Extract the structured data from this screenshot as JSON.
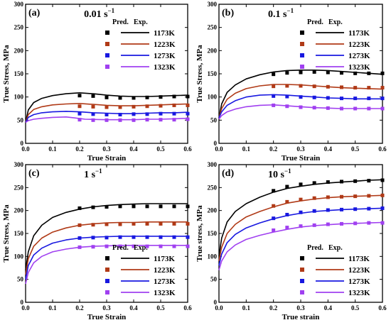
{
  "chart_data": [
    {
      "type": "line",
      "panel_label": "(a)",
      "rate_label": "0.01 s",
      "rate_exp": "−1",
      "xlabel": "True Strain",
      "ylabel": "True Stress, MPa",
      "xlim": [
        0,
        0.6
      ],
      "ylim": [
        0,
        300
      ],
      "x_ticks": [
        "0.0",
        "0.1",
        "0.2",
        "0.3",
        "0.4",
        "0.5",
        "0.6"
      ],
      "y_ticks": [
        "0",
        "50",
        "100",
        "150",
        "200",
        "250",
        "300"
      ],
      "legend_header": [
        "Pred.",
        "Exp."
      ],
      "legend_placement": "top-right",
      "series": [
        {
          "name": "1173K",
          "color": "#000000",
          "pred_x": [
            0,
            0.01,
            0.03,
            0.06,
            0.1,
            0.15,
            0.2,
            0.25,
            0.3,
            0.35,
            0.4,
            0.45,
            0.5,
            0.55,
            0.6
          ],
          "pred_y": [
            45,
            72,
            88,
            97,
            103,
            107,
            109,
            107,
            104,
            102,
            101,
            101,
            102,
            103,
            104
          ],
          "exp_x": [
            0.2,
            0.25,
            0.3,
            0.35,
            0.4,
            0.45,
            0.5,
            0.55,
            0.6
          ],
          "exp_y": [
            103,
            102,
            99,
            98,
            98,
            99,
            100,
            101,
            101
          ]
        },
        {
          "name": "1223K",
          "color": "#b03a17",
          "pred_x": [
            0,
            0.01,
            0.03,
            0.06,
            0.1,
            0.15,
            0.2,
            0.25,
            0.3,
            0.35,
            0.4,
            0.45,
            0.5,
            0.55,
            0.6
          ],
          "pred_y": [
            45,
            62,
            73,
            79,
            83,
            85,
            86,
            84,
            82,
            81,
            81,
            82,
            83,
            84,
            85
          ],
          "exp_x": [
            0.2,
            0.25,
            0.3,
            0.35,
            0.4,
            0.45,
            0.5,
            0.55,
            0.6
          ],
          "exp_y": [
            80,
            79,
            78,
            78,
            79,
            80,
            81,
            82,
            82
          ]
        },
        {
          "name": "1273K",
          "color": "#1818e0",
          "pred_x": [
            0,
            0.01,
            0.03,
            0.06,
            0.1,
            0.15,
            0.2,
            0.25,
            0.3,
            0.35,
            0.4,
            0.45,
            0.5,
            0.55,
            0.6
          ],
          "pred_y": [
            45,
            56,
            62,
            66,
            68,
            69,
            68,
            66,
            65,
            64,
            64,
            65,
            66,
            66,
            67
          ],
          "exp_x": [
            0.2,
            0.25,
            0.3,
            0.35,
            0.4,
            0.45,
            0.5,
            0.55,
            0.6
          ],
          "exp_y": [
            64,
            63,
            62,
            62,
            63,
            63,
            64,
            64,
            64
          ]
        },
        {
          "name": "1323K",
          "color": "#a040f0",
          "pred_x": [
            0,
            0.01,
            0.03,
            0.06,
            0.1,
            0.15,
            0.18,
            0.22,
            0.3,
            0.35,
            0.4,
            0.45,
            0.5,
            0.55,
            0.6
          ],
          "pred_y": [
            45,
            49,
            52,
            54,
            56,
            57,
            55,
            52,
            51,
            51,
            51,
            52,
            52,
            53,
            54
          ],
          "exp_x": [
            0.2,
            0.25,
            0.3,
            0.35,
            0.4,
            0.45,
            0.5,
            0.55,
            0.6
          ],
          "exp_y": [
            51,
            50,
            50,
            50,
            50,
            51,
            51,
            51,
            52
          ]
        }
      ]
    },
    {
      "type": "line",
      "panel_label": "(b)",
      "rate_label": "0.1 s",
      "rate_exp": "−1",
      "xlabel": "True Strain",
      "ylabel": "True Stress, MPa",
      "xlim": [
        0,
        0.6
      ],
      "ylim": [
        0,
        300
      ],
      "x_ticks": [
        "0.0",
        "0.1",
        "0.2",
        "0.3",
        "0.4",
        "0.5",
        "0.6"
      ],
      "y_ticks": [
        "0",
        "50",
        "100",
        "150",
        "200",
        "250",
        "300"
      ],
      "legend_header": [
        "Pred.",
        "Exp."
      ],
      "legend_placement": "top-right",
      "series": [
        {
          "name": "1173K",
          "color": "#000000",
          "pred_x": [
            0,
            0.01,
            0.03,
            0.06,
            0.1,
            0.15,
            0.2,
            0.25,
            0.3,
            0.35,
            0.4,
            0.45,
            0.5,
            0.55,
            0.6
          ],
          "pred_y": [
            55,
            85,
            110,
            126,
            139,
            148,
            154,
            157,
            158,
            158,
            157,
            155,
            153,
            151,
            149
          ],
          "exp_x": [
            0.2,
            0.25,
            0.3,
            0.35,
            0.4,
            0.45,
            0.5,
            0.55,
            0.6
          ],
          "exp_y": [
            149,
            152,
            153,
            154,
            153,
            152,
            151,
            151,
            151
          ]
        },
        {
          "name": "1223K",
          "color": "#b03a17",
          "pred_x": [
            0,
            0.01,
            0.03,
            0.06,
            0.1,
            0.15,
            0.2,
            0.25,
            0.3,
            0.35,
            0.4,
            0.45,
            0.5,
            0.55,
            0.6
          ],
          "pred_y": [
            55,
            75,
            95,
            108,
            118,
            124,
            127,
            127,
            126,
            124,
            122,
            120,
            119,
            118,
            117
          ],
          "exp_x": [
            0.2,
            0.25,
            0.3,
            0.35,
            0.4,
            0.45,
            0.5,
            0.55,
            0.6
          ],
          "exp_y": [
            123,
            124,
            124,
            123,
            122,
            121,
            120,
            120,
            120
          ]
        },
        {
          "name": "1273K",
          "color": "#1818e0",
          "pred_x": [
            0,
            0.01,
            0.03,
            0.06,
            0.1,
            0.15,
            0.2,
            0.25,
            0.3,
            0.35,
            0.4,
            0.45,
            0.5,
            0.55,
            0.6
          ],
          "pred_y": [
            55,
            68,
            82,
            92,
            100,
            104,
            105,
            104,
            102,
            100,
            98,
            97,
            96,
            96,
            96
          ],
          "exp_x": [
            0.2,
            0.25,
            0.3,
            0.35,
            0.4,
            0.45,
            0.5,
            0.55,
            0.6
          ],
          "exp_y": [
            102,
            101,
            100,
            99,
            98,
            97,
            97,
            97,
            97
          ]
        },
        {
          "name": "1323K",
          "color": "#a040f0",
          "pred_x": [
            0,
            0.01,
            0.03,
            0.06,
            0.1,
            0.15,
            0.2,
            0.25,
            0.3,
            0.35,
            0.4,
            0.45,
            0.5,
            0.55,
            0.6
          ],
          "pred_y": [
            52,
            60,
            68,
            74,
            79,
            82,
            83,
            81,
            79,
            77,
            76,
            75,
            75,
            75,
            75
          ],
          "exp_x": [
            0.2,
            0.25,
            0.3,
            0.35,
            0.4,
            0.45,
            0.5,
            0.55,
            0.6
          ],
          "exp_y": [
            82,
            80,
            78,
            77,
            76,
            75,
            75,
            75,
            75
          ]
        }
      ]
    },
    {
      "type": "line",
      "panel_label": "(c)",
      "rate_label": "1 s",
      "rate_exp": "−1",
      "xlabel": "True Strain",
      "ylabel": "True Stress, MPa",
      "xlim": [
        0,
        0.6
      ],
      "ylim": [
        0,
        300
      ],
      "x_ticks": [
        "0.0",
        "0.1",
        "0.2",
        "0.3",
        "0.4",
        "0.5",
        "0.6"
      ],
      "y_ticks": [
        "0",
        "50",
        "100",
        "150",
        "200",
        "250",
        "300"
      ],
      "legend_header": [
        "Pred.",
        "Exp."
      ],
      "legend_placement": "bottom-right",
      "series": [
        {
          "name": "1173K",
          "color": "#000000",
          "pred_x": [
            0,
            0.01,
            0.03,
            0.06,
            0.1,
            0.15,
            0.2,
            0.25,
            0.3,
            0.35,
            0.4,
            0.45,
            0.5,
            0.55,
            0.6
          ],
          "pred_y": [
            70,
            110,
            145,
            168,
            185,
            196,
            203,
            208,
            211,
            213,
            214,
            215,
            215,
            215,
            215
          ],
          "exp_x": [
            0.2,
            0.25,
            0.3,
            0.35,
            0.4,
            0.45,
            0.5,
            0.55,
            0.6
          ],
          "exp_y": [
            205,
            207,
            208,
            209,
            209,
            209,
            209,
            209,
            209
          ]
        },
        {
          "name": "1223K",
          "color": "#b03a17",
          "pred_x": [
            0,
            0.01,
            0.03,
            0.06,
            0.1,
            0.15,
            0.2,
            0.25,
            0.3,
            0.35,
            0.4,
            0.45,
            0.5,
            0.55,
            0.6
          ],
          "pred_y": [
            60,
            95,
            122,
            140,
            153,
            162,
            168,
            171,
            173,
            174,
            174,
            175,
            175,
            175,
            175
          ],
          "exp_x": [
            0.2,
            0.25,
            0.3,
            0.35,
            0.4,
            0.45,
            0.5,
            0.55,
            0.6
          ],
          "exp_y": [
            168,
            169,
            170,
            170,
            171,
            171,
            171,
            171,
            171
          ]
        },
        {
          "name": "1273K",
          "color": "#1818e0",
          "pred_x": [
            0,
            0.01,
            0.03,
            0.06,
            0.1,
            0.15,
            0.2,
            0.25,
            0.3,
            0.35,
            0.4,
            0.45,
            0.5,
            0.55,
            0.6
          ],
          "pred_y": [
            50,
            80,
            103,
            118,
            129,
            136,
            140,
            142,
            143,
            144,
            144,
            144,
            144,
            144,
            144
          ],
          "exp_x": [
            0.2,
            0.25,
            0.3,
            0.35,
            0.4,
            0.45,
            0.5,
            0.55,
            0.6
          ],
          "exp_y": [
            140,
            141,
            141,
            142,
            142,
            142,
            142,
            142,
            142
          ]
        },
        {
          "name": "1323K",
          "color": "#a040f0",
          "pred_x": [
            0,
            0.01,
            0.03,
            0.06,
            0.1,
            0.15,
            0.2,
            0.25,
            0.3,
            0.35,
            0.4,
            0.45,
            0.5,
            0.55,
            0.6
          ],
          "pred_y": [
            40,
            65,
            86,
            100,
            110,
            116,
            120,
            122,
            123,
            124,
            124,
            124,
            124,
            124,
            124
          ],
          "exp_x": [
            0.2,
            0.25,
            0.3,
            0.35,
            0.4,
            0.45,
            0.5,
            0.55,
            0.6
          ],
          "exp_y": [
            120,
            121,
            122,
            122,
            122,
            122,
            122,
            122,
            122
          ]
        }
      ]
    },
    {
      "type": "line",
      "panel_label": "(d)",
      "rate_label": "10 s",
      "rate_exp": "−1",
      "xlabel": "True strain",
      "ylabel": "True stress, MPa",
      "xlim": [
        0,
        0.6
      ],
      "ylim": [
        0,
        300
      ],
      "x_ticks": [
        "0.0",
        "0.1",
        "0.2",
        "0.3",
        "0.4",
        "0.5",
        "0.6"
      ],
      "y_ticks": [
        "0",
        "50",
        "100",
        "150",
        "200",
        "250",
        "300"
      ],
      "legend_header": [
        "Pred.",
        "Exp."
      ],
      "legend_placement": "bottom-right",
      "series": [
        {
          "name": "1173K",
          "color": "#000000",
          "pred_x": [
            0,
            0.01,
            0.03,
            0.06,
            0.1,
            0.15,
            0.2,
            0.25,
            0.3,
            0.35,
            0.4,
            0.45,
            0.5,
            0.55,
            0.6
          ],
          "pred_y": [
            100,
            140,
            175,
            198,
            215,
            229,
            240,
            248,
            253,
            257,
            260,
            262,
            264,
            266,
            267
          ],
          "exp_x": [
            0.2,
            0.25,
            0.3,
            0.35,
            0.4,
            0.45,
            0.5,
            0.55,
            0.6
          ],
          "exp_y": [
            243,
            252,
            257,
            260,
            262,
            263,
            264,
            265,
            266
          ]
        },
        {
          "name": "1223K",
          "color": "#b03a17",
          "pred_x": [
            0,
            0.01,
            0.03,
            0.06,
            0.1,
            0.15,
            0.2,
            0.25,
            0.3,
            0.35,
            0.4,
            0.45,
            0.5,
            0.55,
            0.6
          ],
          "pred_y": [
            90,
            120,
            150,
            170,
            186,
            198,
            208,
            216,
            221,
            225,
            228,
            230,
            231,
            232,
            233
          ],
          "exp_x": [
            0.2,
            0.25,
            0.3,
            0.35,
            0.4,
            0.45,
            0.5,
            0.55,
            0.6
          ],
          "exp_y": [
            210,
            219,
            224,
            227,
            229,
            230,
            231,
            232,
            233
          ]
        },
        {
          "name": "1273K",
          "color": "#1818e0",
          "pred_x": [
            0,
            0.01,
            0.03,
            0.06,
            0.1,
            0.15,
            0.2,
            0.25,
            0.3,
            0.35,
            0.4,
            0.45,
            0.5,
            0.55,
            0.6
          ],
          "pred_y": [
            80,
            105,
            130,
            148,
            162,
            173,
            182,
            189,
            194,
            198,
            200,
            202,
            203,
            204,
            205
          ],
          "exp_x": [
            0.2,
            0.25,
            0.3,
            0.35,
            0.4,
            0.45,
            0.5,
            0.55,
            0.6
          ],
          "exp_y": [
            183,
            191,
            196,
            199,
            201,
            202,
            203,
            204,
            205
          ]
        },
        {
          "name": "1323K",
          "color": "#a040f0",
          "pred_x": [
            0,
            0.01,
            0.03,
            0.06,
            0.1,
            0.15,
            0.2,
            0.25,
            0.3,
            0.35,
            0.4,
            0.45,
            0.5,
            0.55,
            0.6
          ],
          "pred_y": [
            70,
            90,
            110,
            125,
            137,
            146,
            153,
            159,
            164,
            167,
            169,
            171,
            172,
            173,
            174
          ],
          "exp_x": [
            0.2,
            0.25,
            0.3,
            0.35,
            0.4,
            0.45,
            0.5,
            0.55,
            0.6
          ],
          "exp_y": [
            157,
            163,
            166,
            168,
            170,
            171,
            172,
            173,
            173
          ]
        }
      ]
    }
  ]
}
